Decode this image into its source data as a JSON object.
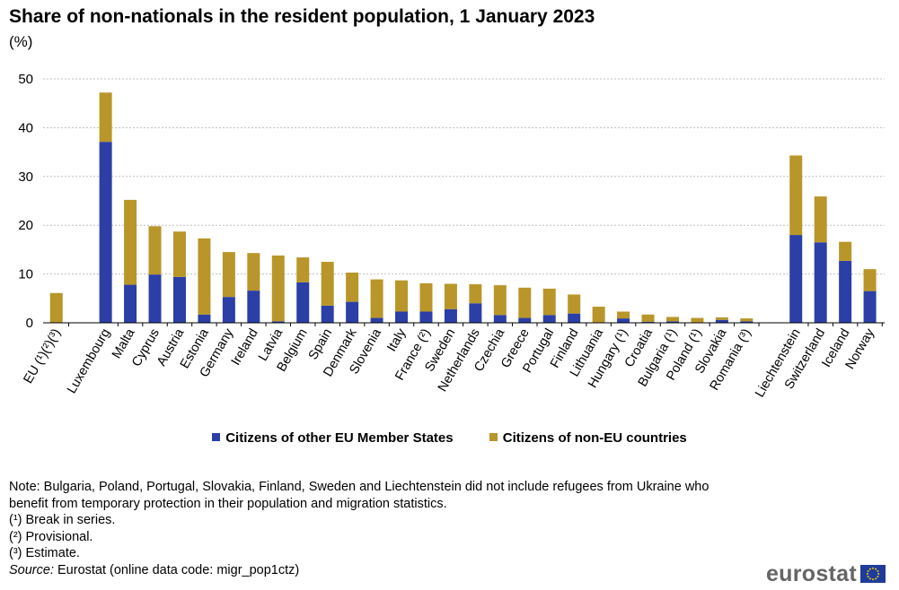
{
  "title": "Share of non-nationals in the resident population, 1 January 2023",
  "unit": "(%)",
  "colors": {
    "eu": "#2b3fa6",
    "noneu": "#b8962a",
    "grid": "#bfbfbf",
    "axis": "#000000"
  },
  "legend": {
    "eu": "Citizens of other EU Member States",
    "noneu": "Citizens of non-EU countries"
  },
  "chart_data": {
    "type": "bar",
    "stacked": true,
    "ylim": [
      0,
      50
    ],
    "yticks": [
      0,
      10,
      20,
      30,
      40,
      50
    ],
    "grid": true,
    "legend_position": "bottom",
    "groups": [
      {
        "categories": [
          "EU (¹)(²)(³)"
        ]
      },
      {
        "categories": [
          "Luxembourg",
          "Malta",
          "Cyprus",
          "Austria",
          "Estonia",
          "Germany",
          "Ireland",
          "Latvia",
          "Belgium",
          "Spain",
          "Denmark",
          "Slovenia",
          "Italy",
          "France (²)",
          "Sweden",
          "Netherlands",
          "Czechia",
          "Greece",
          "Portugal",
          "Finland",
          "Lithuania",
          "Hungary (¹)",
          "Croatia",
          "Bulgaria (¹)",
          "Poland (¹)",
          "Slovakia",
          "Romania (³)"
        ]
      },
      {
        "categories": [
          "Liechtenstein",
          "Switzerland",
          "Iceland",
          "Norway"
        ]
      }
    ],
    "categories": [
      "EU (¹)(²)(³)",
      "Luxembourg",
      "Malta",
      "Cyprus",
      "Austria",
      "Estonia",
      "Germany",
      "Ireland",
      "Latvia",
      "Belgium",
      "Spain",
      "Denmark",
      "Slovenia",
      "Italy",
      "France (²)",
      "Sweden",
      "Netherlands",
      "Czechia",
      "Greece",
      "Portugal",
      "Finland",
      "Lithuania",
      "Hungary (¹)",
      "Croatia",
      "Bulgaria (¹)",
      "Poland (¹)",
      "Slovakia",
      "Romania (³)",
      "Liechtenstein",
      "Switzerland",
      "Iceland",
      "Norway"
    ],
    "series": [
      {
        "name": "Citizens of other EU Member States",
        "values": [
          0,
          37.1,
          7.8,
          9.9,
          9.4,
          1.7,
          5.3,
          6.6,
          0.3,
          8.3,
          3.5,
          4.3,
          1.0,
          2.3,
          2.3,
          2.8,
          4.0,
          1.6,
          1.0,
          1.6,
          1.9,
          0.1,
          0.9,
          0.2,
          0.3,
          0.1,
          0.6,
          0.3,
          18.0,
          16.5,
          12.7,
          6.5
        ]
      },
      {
        "name": "Citizens of non-EU countries",
        "values": [
          6.1,
          10.1,
          17.4,
          9.9,
          9.3,
          15.6,
          9.2,
          7.7,
          13.5,
          5.1,
          9.0,
          6.0,
          7.9,
          6.4,
          5.8,
          5.2,
          3.9,
          6.1,
          6.2,
          5.4,
          3.9,
          3.2,
          1.4,
          1.5,
          0.9,
          0.9,
          0.5,
          0.6,
          16.3,
          9.4,
          3.9,
          4.5
        ]
      }
    ]
  },
  "notes": {
    "main": "Note: Bulgaria, Poland, Portugal, Slovakia, Finland, Sweden and Liechtenstein did not include refugees from Ukraine who benefit from temporary protection in their population and migration statistics.",
    "n1": "(¹) Break in series.",
    "n2": "(²) Provisional.",
    "n3": "(³) Estimate.",
    "source_label": "Source:",
    "source_text": " Eurostat (online data code: migr_pop1ctz)"
  },
  "logo": {
    "text": "eurostat"
  }
}
